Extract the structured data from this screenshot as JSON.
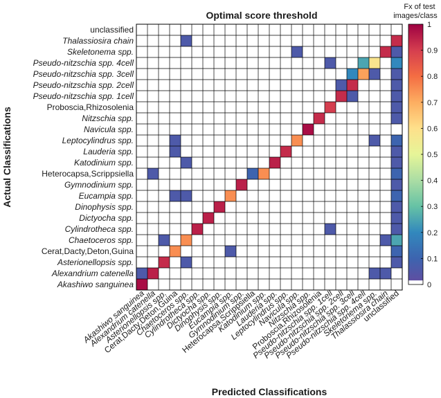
{
  "chart_data": {
    "type": "heatmap",
    "title": "Optimal score threshold",
    "xlabel": "Predicted Classifications",
    "ylabel": "Actual Classifications",
    "colorbar_label": [
      "Fx of test",
      "images/class"
    ],
    "colorbar_ticks": [
      "0",
      "0.1",
      "0.2",
      "0.3",
      "0.4",
      "0.5",
      "0.6",
      "0.7",
      "0.8",
      "0.9",
      "1"
    ],
    "clim": [
      0,
      1
    ],
    "colormap": "spectral-reversed",
    "zero_color": "#ffffff",
    "classes": [
      {
        "label": "Akashiwo sanguinea",
        "italic": true
      },
      {
        "label": "Alexandrium catenella",
        "italic": true
      },
      {
        "label": "Asterionellopsis spp.",
        "italic": true
      },
      {
        "label": "Cerat,Dacty,Deton,Guina",
        "italic": false
      },
      {
        "label": "Chaetoceros spp.",
        "italic": true
      },
      {
        "label": "Cylindrotheca spp.",
        "italic": true
      },
      {
        "label": "Dictyocha spp.",
        "italic": true
      },
      {
        "label": "Dinophysis spp.",
        "italic": true
      },
      {
        "label": "Eucampia spp.",
        "italic": true
      },
      {
        "label": "Gymnodinium spp.",
        "italic": true
      },
      {
        "label": "Heterocapsa,Scrippsiella",
        "italic": false
      },
      {
        "label": "Katodinium spp.",
        "italic": true
      },
      {
        "label": "Lauderia spp.",
        "italic": true
      },
      {
        "label": "Leptocylindrus spp.",
        "italic": true
      },
      {
        "label": "Navicula spp.",
        "italic": true
      },
      {
        "label": "Nitzschia spp.",
        "italic": true
      },
      {
        "label": "Proboscia,Rhizosolenia",
        "italic": false
      },
      {
        "label": "Pseudo-nitzschia spp. 1cell",
        "italic": true
      },
      {
        "label": "Pseudo-nitzschia spp. 2cell",
        "italic": true
      },
      {
        "label": "Pseudo-nitzschia spp. 3cell",
        "italic": true
      },
      {
        "label": "Pseudo-nitzschia spp. 4cell",
        "italic": true
      },
      {
        "label": "Skeletonema spp.",
        "italic": true
      },
      {
        "label": "Thalassiosira chain",
        "italic": true
      },
      {
        "label": "unclassified",
        "italic": false
      }
    ],
    "cells": [
      {
        "actual": 0,
        "predicted": 0,
        "value": 0.98
      },
      {
        "actual": 1,
        "predicted": 0,
        "value": 0.05
      },
      {
        "actual": 1,
        "predicted": 1,
        "value": 0.95
      },
      {
        "actual": 1,
        "predicted": 21,
        "value": 0.05
      },
      {
        "actual": 1,
        "predicted": 22,
        "value": 0.05
      },
      {
        "actual": 2,
        "predicted": 2,
        "value": 0.93
      },
      {
        "actual": 2,
        "predicted": 4,
        "value": 0.05
      },
      {
        "actual": 2,
        "predicted": 23,
        "value": 0.05
      },
      {
        "actual": 3,
        "predicted": 3,
        "value": 0.75
      },
      {
        "actual": 3,
        "predicted": 8,
        "value": 0.05
      },
      {
        "actual": 3,
        "predicted": 23,
        "value": 0.1
      },
      {
        "actual": 4,
        "predicted": 2,
        "value": 0.05
      },
      {
        "actual": 4,
        "predicted": 4,
        "value": 0.75
      },
      {
        "actual": 4,
        "predicted": 22,
        "value": 0.05
      },
      {
        "actual": 4,
        "predicted": 23,
        "value": 0.25
      },
      {
        "actual": 5,
        "predicted": 5,
        "value": 0.95
      },
      {
        "actual": 5,
        "predicted": 17,
        "value": 0.05
      },
      {
        "actual": 5,
        "predicted": 23,
        "value": 0.05
      },
      {
        "actual": 6,
        "predicted": 6,
        "value": 0.95
      },
      {
        "actual": 6,
        "predicted": 23,
        "value": 0.05
      },
      {
        "actual": 7,
        "predicted": 7,
        "value": 0.95
      },
      {
        "actual": 7,
        "predicted": 23,
        "value": 0.05
      },
      {
        "actual": 8,
        "predicted": 3,
        "value": 0.05
      },
      {
        "actual": 8,
        "predicted": 4,
        "value": 0.05
      },
      {
        "actual": 8,
        "predicted": 8,
        "value": 0.75
      },
      {
        "actual": 8,
        "predicted": 23,
        "value": 0.1
      },
      {
        "actual": 9,
        "predicted": 9,
        "value": 0.95
      },
      {
        "actual": 9,
        "predicted": 23,
        "value": 0.05
      },
      {
        "actual": 10,
        "predicted": 1,
        "value": 0.05
      },
      {
        "actual": 10,
        "predicted": 10,
        "value": 0.1
      },
      {
        "actual": 10,
        "predicted": 11,
        "value": 0.75
      },
      {
        "actual": 10,
        "predicted": 23,
        "value": 0.1
      },
      {
        "actual": 11,
        "predicted": 4,
        "value": 0.05
      },
      {
        "actual": 11,
        "predicted": 12,
        "value": 0.95
      },
      {
        "actual": 11,
        "predicted": 23,
        "value": 0.05
      },
      {
        "actual": 12,
        "predicted": 3,
        "value": 0.05
      },
      {
        "actual": 12,
        "predicted": 13,
        "value": 0.93
      },
      {
        "actual": 12,
        "predicted": 23,
        "value": 0.05
      },
      {
        "actual": 13,
        "predicted": 3,
        "value": 0.05
      },
      {
        "actual": 13,
        "predicted": 14,
        "value": 0.75
      },
      {
        "actual": 13,
        "predicted": 21,
        "value": 0.05
      },
      {
        "actual": 13,
        "predicted": 23,
        "value": 0.1
      },
      {
        "actual": 14,
        "predicted": 15,
        "value": 0.98
      },
      {
        "actual": 15,
        "predicted": 16,
        "value": 0.93
      },
      {
        "actual": 15,
        "predicted": 23,
        "value": 0.05
      },
      {
        "actual": 16,
        "predicted": 17,
        "value": 0.9
      },
      {
        "actual": 16,
        "predicted": 23,
        "value": 0.05
      },
      {
        "actual": 17,
        "predicted": 18,
        "value": 0.93
      },
      {
        "actual": 17,
        "predicted": 19,
        "value": 0.05
      },
      {
        "actual": 17,
        "predicted": 23,
        "value": 0.05
      },
      {
        "actual": 18,
        "predicted": 18,
        "value": 0.05
      },
      {
        "actual": 18,
        "predicted": 19,
        "value": 0.93
      },
      {
        "actual": 18,
        "predicted": 23,
        "value": 0.05
      },
      {
        "actual": 19,
        "predicted": 19,
        "value": 0.2
      },
      {
        "actual": 19,
        "predicted": 20,
        "value": 0.72
      },
      {
        "actual": 19,
        "predicted": 21,
        "value": 0.05
      },
      {
        "actual": 19,
        "predicted": 23,
        "value": 0.05
      },
      {
        "actual": 20,
        "predicted": 17,
        "value": 0.05
      },
      {
        "actual": 20,
        "predicted": 20,
        "value": 0.25
      },
      {
        "actual": 20,
        "predicted": 21,
        "value": 0.58
      },
      {
        "actual": 20,
        "predicted": 23,
        "value": 0.2
      },
      {
        "actual": 21,
        "predicted": 14,
        "value": 0.05
      },
      {
        "actual": 21,
        "predicted": 22,
        "value": 0.93
      },
      {
        "actual": 21,
        "predicted": 23,
        "value": 0.05
      },
      {
        "actual": 22,
        "predicted": 4,
        "value": 0.05
      },
      {
        "actual": 22,
        "predicted": 23,
        "value": 0.93
      }
    ]
  }
}
